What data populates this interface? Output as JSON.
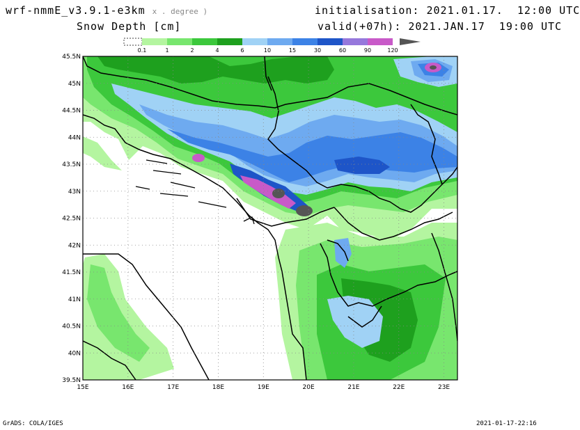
{
  "header": {
    "model": "wrf-nmmE_v3.9.1-e3km",
    "model_suffix": "x . degree )",
    "variable": "Snow Depth [cm]",
    "init_label": "initialisation:",
    "init_value": "2021.01.17.  12:00 UTC",
    "valid_label": "valid(+07h):",
    "valid_value": "2021.JAN.17  19:00 UTC"
  },
  "legend": {
    "levels": [
      "0.1",
      "1",
      "2",
      "4",
      "6",
      "10",
      "15",
      "30",
      "60",
      "90",
      "120"
    ],
    "colors": [
      "#ffffff",
      "#b4f5a0",
      "#78e66e",
      "#3cc83c",
      "#1ea01e",
      "#a0d2f5",
      "#6eaaf0",
      "#3c82e6",
      "#1e55c8",
      "#9678dc",
      "#c85ac8",
      "#555555"
    ]
  },
  "map": {
    "lat_labels": [
      "45.5N",
      "45N",
      "44.5N",
      "44N",
      "43.5N",
      "43N",
      "42.5N",
      "42N",
      "41.5N",
      "41N",
      "40.5N",
      "40N",
      "39.5N"
    ],
    "lon_labels": [
      "15E",
      "16E",
      "17E",
      "18E",
      "19E",
      "20E",
      "21E",
      "22E",
      "23E"
    ]
  },
  "footer": {
    "credit": "GrADS: COLA/IGES",
    "timestamp": "2021-01-17-22:16"
  }
}
